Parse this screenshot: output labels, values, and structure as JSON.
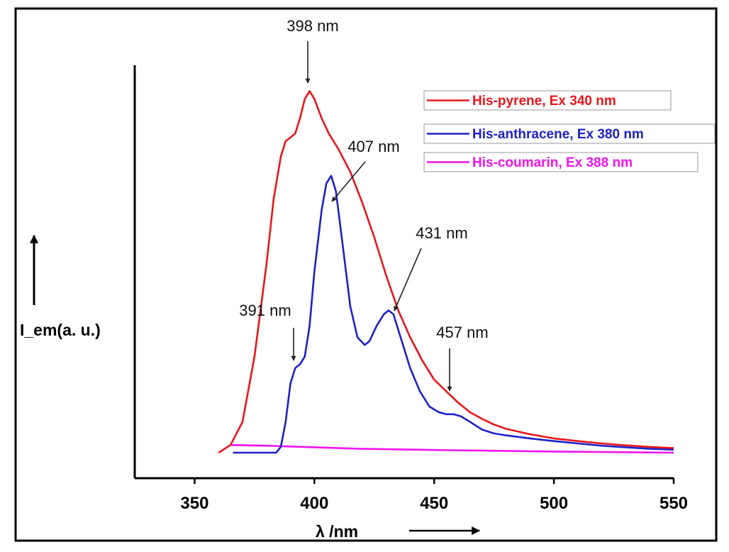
{
  "chart_data": {
    "type": "line",
    "xlabel": "λ /nm",
    "ylabel": "I_em(a. u.)",
    "xlim": [
      325,
      550
    ],
    "ylim": [
      0,
      1.0
    ],
    "xticks": [
      350,
      400,
      450,
      500,
      550
    ],
    "grid": false,
    "legend_position": "top-right",
    "series": [
      {
        "name": "His-pyrene, Ex 340 nm",
        "color": "#e8161b",
        "x": [
          360,
          365,
          370,
          375,
          380,
          383,
          386,
          388,
          390,
          392,
          394,
          396,
          398,
          400,
          403,
          406,
          410,
          415,
          420,
          425,
          430,
          435,
          440,
          445,
          450,
          455,
          460,
          465,
          470,
          475,
          480,
          490,
          500,
          510,
          520,
          530,
          540,
          550
        ],
        "y": [
          0.0,
          0.02,
          0.08,
          0.25,
          0.49,
          0.66,
          0.77,
          0.81,
          0.82,
          0.83,
          0.87,
          0.92,
          0.94,
          0.92,
          0.87,
          0.83,
          0.79,
          0.73,
          0.65,
          0.56,
          0.46,
          0.37,
          0.3,
          0.24,
          0.19,
          0.16,
          0.13,
          0.105,
          0.088,
          0.073,
          0.062,
          0.048,
          0.037,
          0.03,
          0.024,
          0.019,
          0.015,
          0.012
        ]
      },
      {
        "name": "His-anthracene, Ex 380 nm",
        "color": "#1c22c8",
        "x": [
          366,
          375,
          384,
          386,
          388,
          390,
          392,
          394,
          396,
          398,
          400,
          403,
          405,
          407,
          409,
          412,
          415,
          418,
          421,
          423,
          426,
          429,
          431,
          433,
          436,
          440,
          444,
          448,
          452,
          455,
          458,
          461,
          465,
          470,
          475,
          480,
          490,
          500,
          510,
          520,
          530,
          540,
          550
        ],
        "y": [
          0.0,
          0.0,
          0.0,
          0.015,
          0.08,
          0.18,
          0.22,
          0.23,
          0.25,
          0.33,
          0.47,
          0.63,
          0.7,
          0.72,
          0.68,
          0.53,
          0.38,
          0.3,
          0.28,
          0.29,
          0.33,
          0.36,
          0.37,
          0.36,
          0.3,
          0.22,
          0.16,
          0.12,
          0.105,
          0.1,
          0.1,
          0.095,
          0.08,
          0.06,
          0.05,
          0.045,
          0.037,
          0.03,
          0.024,
          0.018,
          0.014,
          0.01,
          0.008
        ]
      },
      {
        "name": "His-coumarin, Ex 388 nm",
        "color": "#f013f0",
        "x": [
          365,
          380,
          400,
          420,
          450,
          500,
          550
        ],
        "y": [
          0.02,
          0.018,
          0.014,
          0.01,
          0.007,
          0.003,
          0.0
        ]
      }
    ],
    "annotations": [
      {
        "text": "398 nm",
        "x": 398
      },
      {
        "text": "407 nm",
        "x": 407
      },
      {
        "text": "391 nm",
        "x": 391
      },
      {
        "text": "431 nm",
        "x": 431
      },
      {
        "text": "457 nm",
        "x": 457
      }
    ]
  }
}
